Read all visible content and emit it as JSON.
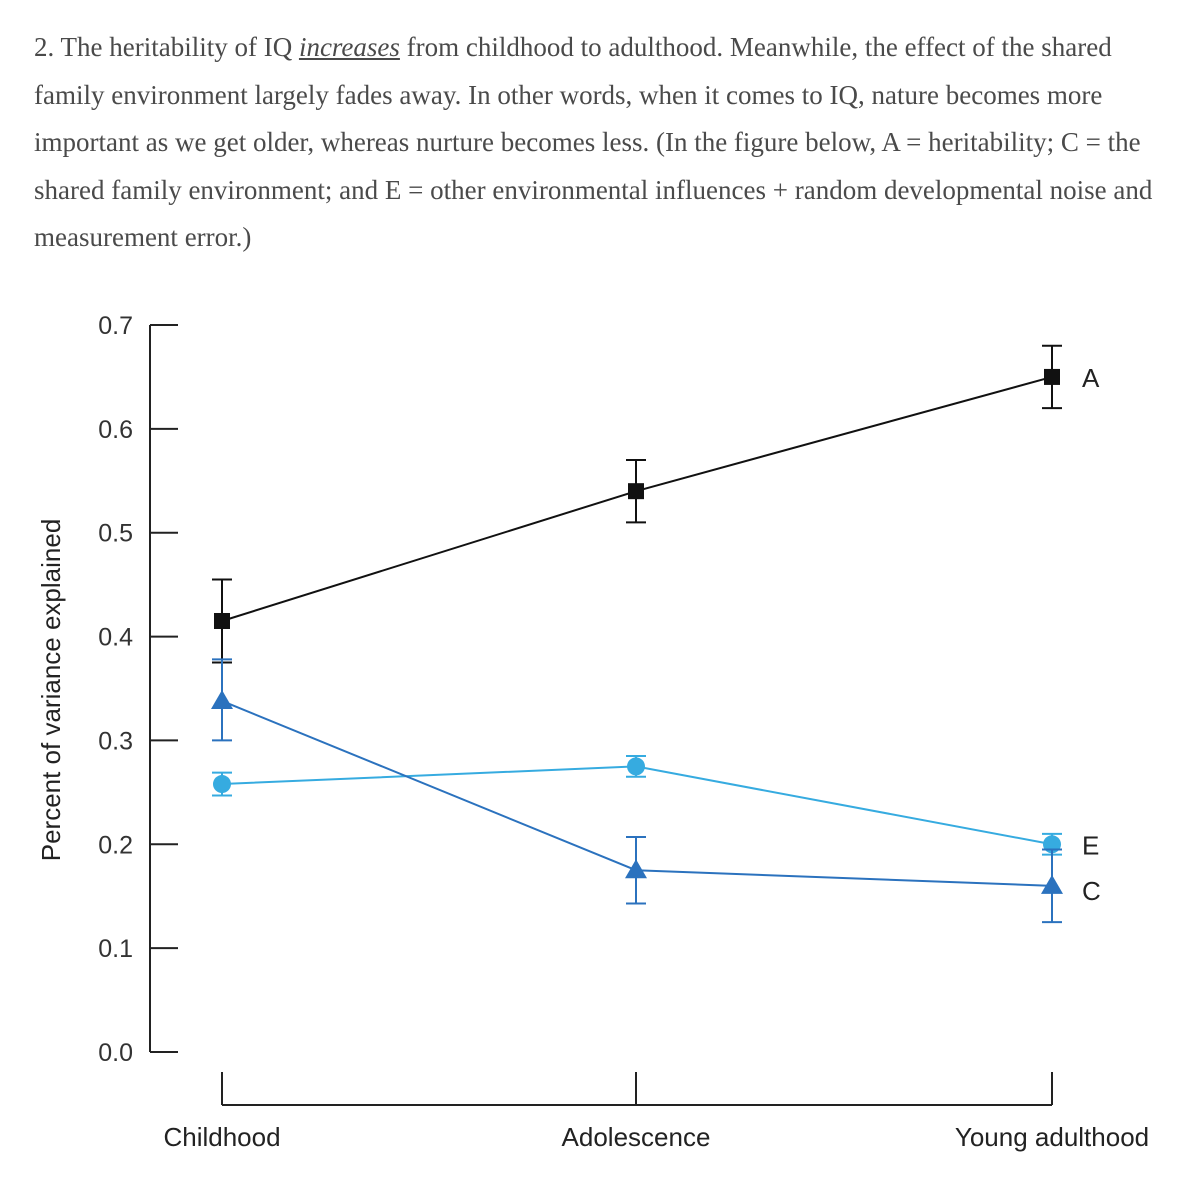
{
  "text": {
    "part1": "2. The heritability of IQ ",
    "emph": "increases",
    "part2": " from childhood to adulthood. Meanwhile, the effect of the shared family environment largely fades away. In other words, when it comes to IQ, nature becomes more important as we get older, whereas nurture becomes less. (In the figure below, A = heritability; C = the shared family environment; and E = other environmental influences + random developmental noise and measurement error.)"
  },
  "colors": {
    "A": "#111111",
    "C": "#2b72be",
    "E": "#36abe0",
    "axis": "#222222"
  },
  "chart_data": {
    "type": "line",
    "categories": [
      "Childhood",
      "Adolescence",
      "Young adulthood"
    ],
    "ylabel": "Percent of variance explained",
    "ylim": [
      0,
      0.7
    ],
    "yticks": [
      "0.0",
      "0.1",
      "0.2",
      "0.3",
      "0.4",
      "0.5",
      "0.6",
      "0.7"
    ],
    "legend": "inline-right",
    "grid": false,
    "series": [
      {
        "name": "A",
        "marker": "square",
        "values": [
          0.415,
          0.54,
          0.65
        ],
        "err_low": [
          0.375,
          0.51,
          0.62
        ],
        "err_high": [
          0.455,
          0.57,
          0.68
        ]
      },
      {
        "name": "E",
        "marker": "circle",
        "values": [
          0.258,
          0.275,
          0.2
        ],
        "err_low": [
          0.247,
          0.265,
          0.19
        ],
        "err_high": [
          0.269,
          0.285,
          0.21
        ]
      },
      {
        "name": "C",
        "marker": "triangle",
        "values": [
          0.338,
          0.175,
          0.16
        ],
        "err_low": [
          0.3,
          0.143,
          0.125
        ],
        "err_high": [
          0.378,
          0.207,
          0.195
        ]
      }
    ]
  }
}
